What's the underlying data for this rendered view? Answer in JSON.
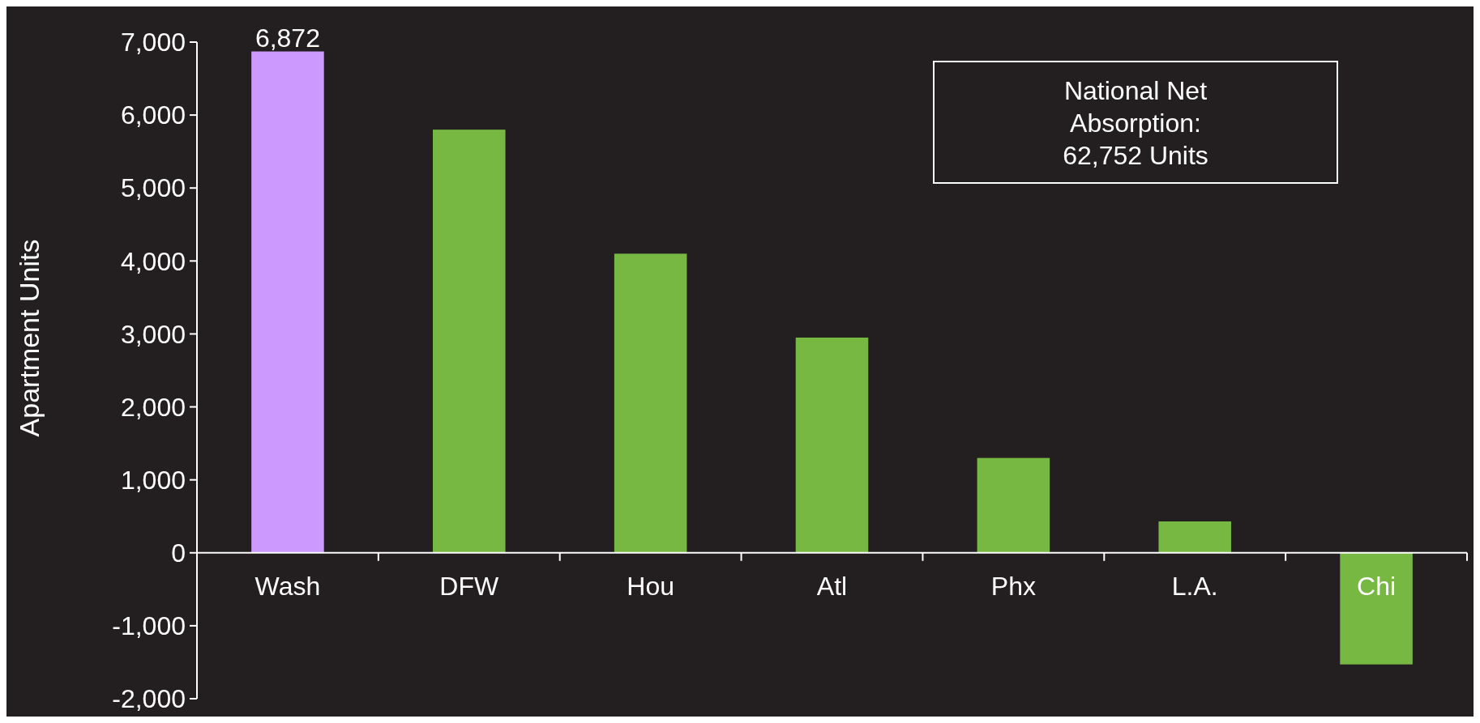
{
  "chart_data": {
    "type": "bar",
    "ylabel": "Apartment Units",
    "categories": [
      "Wash",
      "DFW",
      "Hou",
      "Atl",
      "Phx",
      "L.A.",
      "Chi"
    ],
    "values": [
      6872,
      5800,
      4100,
      2950,
      1300,
      430,
      -1530
    ],
    "colors": [
      "#cc99ff",
      "#77b843",
      "#77b843",
      "#77b843",
      "#77b843",
      "#77b843",
      "#77b843"
    ],
    "value_labels": [
      "6,872",
      null,
      null,
      null,
      null,
      null,
      null
    ],
    "ylim": [
      -2000,
      7000
    ],
    "yticks": [
      {
        "value": -2000,
        "label": "-2,000"
      },
      {
        "value": -1000,
        "label": "-1,000"
      },
      {
        "value": 0,
        "label": "0"
      },
      {
        "value": 1000,
        "label": "1,000"
      },
      {
        "value": 2000,
        "label": "2,000"
      },
      {
        "value": 3000,
        "label": "3,000"
      },
      {
        "value": 4000,
        "label": "4,000"
      },
      {
        "value": 5000,
        "label": "5,000"
      },
      {
        "value": 6000,
        "label": "6,000"
      },
      {
        "value": 7000,
        "label": "7,000"
      }
    ],
    "annotations": [
      "National Net Absorption: 62,752 Units"
    ]
  }
}
